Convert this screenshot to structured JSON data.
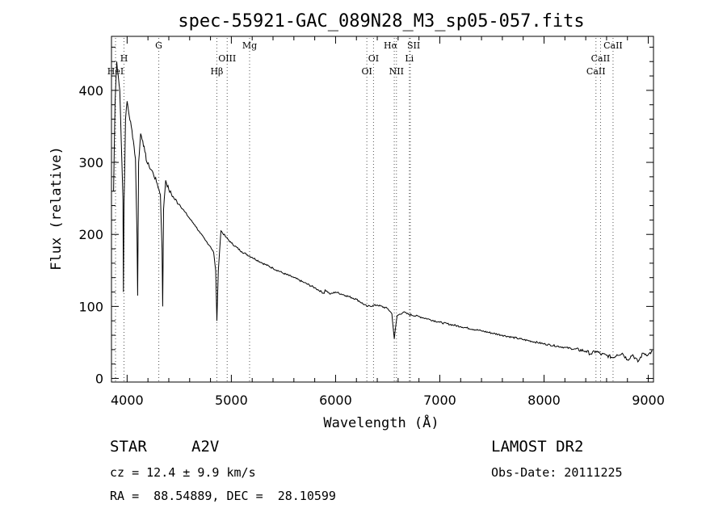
{
  "chart_data": {
    "type": "line",
    "title": "spec-55921-GAC_089N28_M3_sp05-057.fits",
    "xlabel": "Wavelength (Å)",
    "ylabel": "Flux (relative)",
    "xlim": [
      3850,
      9050
    ],
    "ylim": [
      -5,
      475
    ],
    "xticks": [
      4000,
      5000,
      6000,
      7000,
      8000,
      9000
    ],
    "yticks": [
      0,
      100,
      200,
      300,
      400
    ],
    "grid": false,
    "series": [
      {
        "name": "",
        "x": [
          3870,
          3885,
          3900,
          3915,
          3930,
          3950,
          3960,
          3965,
          3970,
          3985,
          4000,
          4020,
          4040,
          4060,
          4080,
          4095,
          4101,
          4110,
          4130,
          4150,
          4170,
          4190,
          4210,
          4250,
          4290,
          4320,
          4335,
          4341,
          4350,
          4370,
          4400,
          4450,
          4500,
          4550,
          4600,
          4650,
          4700,
          4750,
          4800,
          4830,
          4850,
          4861,
          4875,
          4900,
          4950,
          5000,
          5100,
          5200,
          5300,
          5400,
          5500,
          5600,
          5700,
          5800,
          5890,
          5900,
          5950,
          6000,
          6100,
          6200,
          6300,
          6400,
          6500,
          6540,
          6563,
          6590,
          6650,
          6700,
          6800,
          6900,
          7000,
          7200,
          7400,
          7600,
          7800,
          8000,
          8200,
          8400,
          8450,
          8498,
          8542,
          8600,
          8662,
          8700,
          8750,
          8800,
          8850,
          8900,
          8950,
          9000,
          9040
        ],
        "y": [
          260,
          385,
          440,
          420,
          400,
          300,
          250,
          120,
          240,
          360,
          385,
          365,
          350,
          330,
          305,
          200,
          115,
          300,
          340,
          330,
          315,
          300,
          295,
          285,
          270,
          255,
          180,
          100,
          235,
          275,
          262,
          250,
          242,
          232,
          222,
          213,
          202,
          192,
          183,
          175,
          150,
          80,
          150,
          205,
          196,
          188,
          176,
          168,
          160,
          153,
          146,
          140,
          133,
          126,
          118,
          123,
          117,
          120,
          115,
          110,
          100,
          102,
          97,
          90,
          55,
          87,
          92,
          89,
          86,
          82,
          78,
          72,
          66,
          60,
          54,
          48,
          43,
          38,
          34,
          38,
          34,
          32,
          29,
          33,
          35,
          26,
          33,
          23,
          35,
          33,
          38
        ]
      }
    ],
    "lines": [
      {
        "label": "HeI",
        "x": 3889
      },
      {
        "label": "H",
        "x": 3970
      },
      {
        "label": "G",
        "x": 4304
      },
      {
        "label": "Hβ",
        "x": 4861
      },
      {
        "label": "OIII",
        "x": 4960
      },
      {
        "label": "Mg",
        "x": 5175
      },
      {
        "label": "OI",
        "x": 6300
      },
      {
        "label": "OI",
        "x": 6364
      },
      {
        "label": "Hα",
        "x": 6563
      },
      {
        "label": "NII",
        "x": 6584
      },
      {
        "label": "SII",
        "x": 6717
      },
      {
        "label": "Li",
        "x": 6708
      },
      {
        "label": "CaII",
        "x": 8498
      },
      {
        "label": "CaII",
        "x": 8542
      },
      {
        "label": "CaII",
        "x": 8662
      }
    ]
  },
  "info": {
    "object_class": "STAR",
    "subclass": "A2V",
    "survey": "LAMOST DR2",
    "cz": "cz = 12.4 ± 9.9 km/s",
    "obs_date": "Obs-Date: 20111225",
    "coords": "RA =  88.54889, DEC =  28.10599"
  }
}
